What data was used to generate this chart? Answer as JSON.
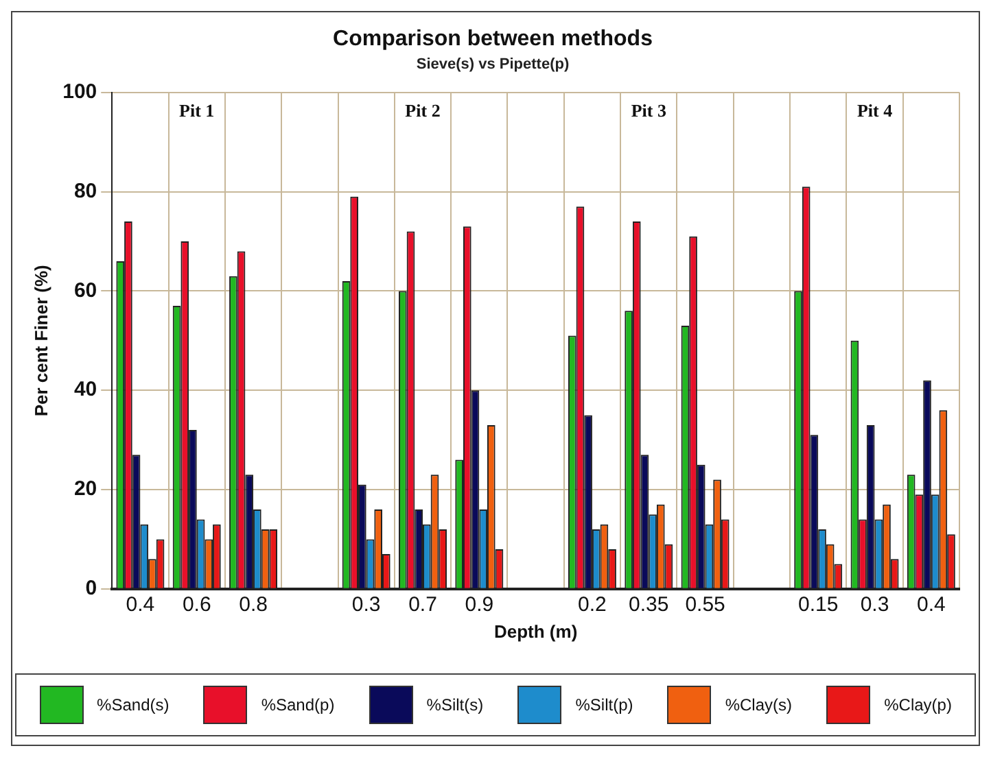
{
  "chart_data": {
    "type": "bar",
    "title": "Comparison between methods",
    "subtitle": "Sieve(s) vs Pipette(p)",
    "xlabel": "Depth (m)",
    "ylabel": "Per cent Finer (%)",
    "categories": [
      "0.4",
      "0.6",
      "0.8",
      null,
      "0.3",
      "0.7",
      "0.9",
      null,
      "0.2",
      "0.35",
      "0.55",
      null,
      "0.15",
      "0.3",
      "0.4"
    ],
    "series": [
      {
        "name": "%Sand(s)",
        "color": "#22b822",
        "values": [
          66,
          57,
          63,
          null,
          62,
          60,
          26,
          null,
          51,
          56,
          53,
          null,
          60,
          50,
          23
        ]
      },
      {
        "name": "%Sand(p)",
        "color": "#e8102a",
        "values": [
          74,
          70,
          68,
          null,
          79,
          72,
          73,
          null,
          77,
          74,
          71,
          null,
          81,
          14,
          19
        ]
      },
      {
        "name": "%Silt(s)",
        "color": "#0a0a5a",
        "values": [
          27,
          32,
          23,
          null,
          21,
          16,
          40,
          null,
          35,
          27,
          25,
          null,
          31,
          33,
          42
        ]
      },
      {
        "name": "%Silt(p)",
        "color": "#1e8ccc",
        "values": [
          13,
          14,
          16,
          null,
          10,
          13,
          16,
          null,
          12,
          15,
          13,
          null,
          12,
          14,
          19
        ]
      },
      {
        "name": "%Clay(s)",
        "color": "#f06010",
        "values": [
          6,
          10,
          12,
          null,
          16,
          23,
          33,
          null,
          13,
          17,
          22,
          null,
          9,
          17,
          36
        ]
      },
      {
        "name": "%Clay(p)",
        "color": "#e81818",
        "values": [
          10,
          13,
          12,
          null,
          7,
          12,
          8,
          null,
          8,
          9,
          14,
          null,
          5,
          6,
          11
        ]
      }
    ],
    "annotations": [
      "Pit 1",
      "Pit 2",
      "Pit 3",
      "Pit 4"
    ],
    "ylim": [
      0,
      100
    ],
    "yticks": [
      0,
      20,
      40,
      60,
      80,
      100
    ],
    "grid": true,
    "legend": "bottom"
  }
}
